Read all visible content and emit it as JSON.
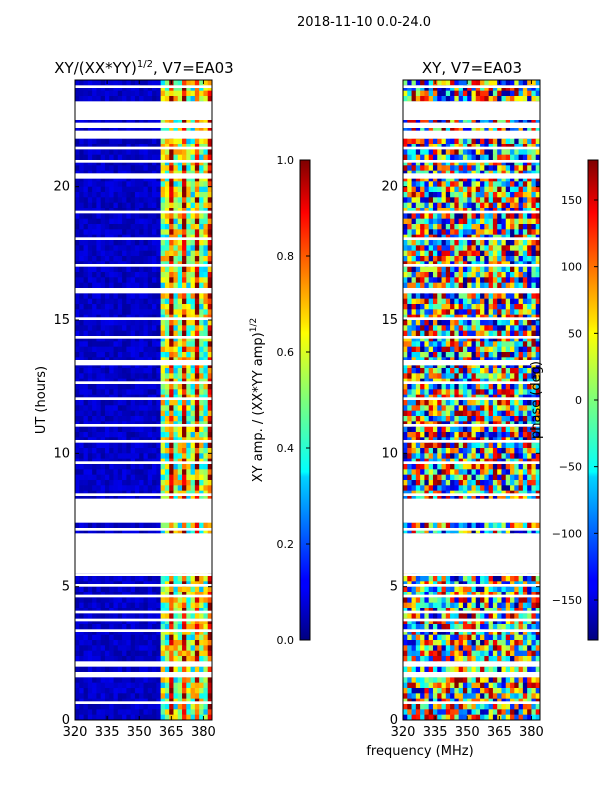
{
  "figure_title": "2018-11-10 0.0-24.0",
  "shared_xlabel": "frequency (MHz)",
  "chart_data": [
    {
      "type": "heatmap",
      "id": "amp",
      "title": "XY/(XX*YY)",
      "title_exp": "1/2",
      "title_suffix": ", V7=EA03",
      "xlabel": "frequency (MHz)",
      "ylabel": "UT (hours)",
      "xlim": [
        320,
        384
      ],
      "ylim": [
        0,
        24
      ],
      "xticks": [
        320,
        335,
        350,
        365,
        380
      ],
      "yticks": [
        0,
        5,
        10,
        15,
        20
      ],
      "colorbar": {
        "label": "XY amp. / (XX*YY amp)",
        "label_exp": "1/2",
        "range": [
          0.0,
          1.0
        ],
        "ticks": [
          0.0,
          0.2,
          0.4,
          0.6,
          0.8,
          1.0
        ],
        "tick_labels": [
          "0.0",
          "0.2",
          "0.4",
          "0.6",
          "0.8",
          "1.0"
        ]
      },
      "data_gaps_hours": [
        [
          0.6,
          0.7
        ],
        [
          1.6,
          1.8
        ],
        [
          2.0,
          2.2
        ],
        [
          3.3,
          3.4
        ],
        [
          3.7,
          3.8
        ],
        [
          4.0,
          4.1
        ],
        [
          4.6,
          4.7
        ],
        [
          5.0,
          5.1
        ],
        [
          5.4,
          5.5
        ],
        [
          5.5,
          7.0
        ],
        [
          7.1,
          7.2
        ],
        [
          7.4,
          8.3
        ],
        [
          8.4,
          8.5
        ],
        [
          9.6,
          9.7
        ],
        [
          10.4,
          10.5
        ],
        [
          11.0,
          11.1
        ],
        [
          12.0,
          12.1
        ],
        [
          12.6,
          12.7
        ],
        [
          13.3,
          13.5
        ],
        [
          14.3,
          14.4
        ],
        [
          15.0,
          15.1
        ],
        [
          16.0,
          16.2
        ],
        [
          17.0,
          17.1
        ],
        [
          18.0,
          18.1
        ],
        [
          19.0,
          19.1
        ],
        [
          20.3,
          20.5
        ],
        [
          20.9,
          21.0
        ],
        [
          21.4,
          21.5
        ],
        [
          21.8,
          22.1
        ],
        [
          22.2,
          22.4
        ],
        [
          22.5,
          23.2
        ],
        [
          23.7,
          23.8
        ]
      ]
    },
    {
      "type": "heatmap",
      "id": "phase",
      "title": "XY, V7=EA03",
      "xlabel": "frequency (MHz)",
      "ylabel": "",
      "xlim": [
        320,
        384
      ],
      "ylim": [
        0,
        24
      ],
      "xticks": [
        320,
        335,
        350,
        365,
        380
      ],
      "yticks": [
        0,
        5,
        10,
        15,
        20
      ],
      "colorbar": {
        "label": "phase (deg)",
        "range": [
          -180,
          180
        ],
        "ticks": [
          -150,
          -100,
          -50,
          0,
          50,
          100,
          150
        ],
        "tick_labels": [
          "−150",
          "−100",
          "−50",
          "0",
          "50",
          "100",
          "150"
        ]
      },
      "data_gaps_hours": [
        [
          0.6,
          0.7
        ],
        [
          1.6,
          1.8
        ],
        [
          2.0,
          2.2
        ],
        [
          3.3,
          3.4
        ],
        [
          3.7,
          3.8
        ],
        [
          4.0,
          4.1
        ],
        [
          4.6,
          4.7
        ],
        [
          5.0,
          5.1
        ],
        [
          5.4,
          5.5
        ],
        [
          5.5,
          7.0
        ],
        [
          7.1,
          7.2
        ],
        [
          7.4,
          8.3
        ],
        [
          8.4,
          8.5
        ],
        [
          9.6,
          9.7
        ],
        [
          10.4,
          10.5
        ],
        [
          11.0,
          11.1
        ],
        [
          12.0,
          12.1
        ],
        [
          12.6,
          12.7
        ],
        [
          13.3,
          13.5
        ],
        [
          14.3,
          14.4
        ],
        [
          15.0,
          15.1
        ],
        [
          16.0,
          16.2
        ],
        [
          17.0,
          17.1
        ],
        [
          18.0,
          18.1
        ],
        [
          19.0,
          19.1
        ],
        [
          20.3,
          20.5
        ],
        [
          20.9,
          21.0
        ],
        [
          21.4,
          21.5
        ],
        [
          21.8,
          22.1
        ],
        [
          22.2,
          22.4
        ],
        [
          22.5,
          23.2
        ],
        [
          23.7,
          23.8
        ]
      ]
    }
  ]
}
